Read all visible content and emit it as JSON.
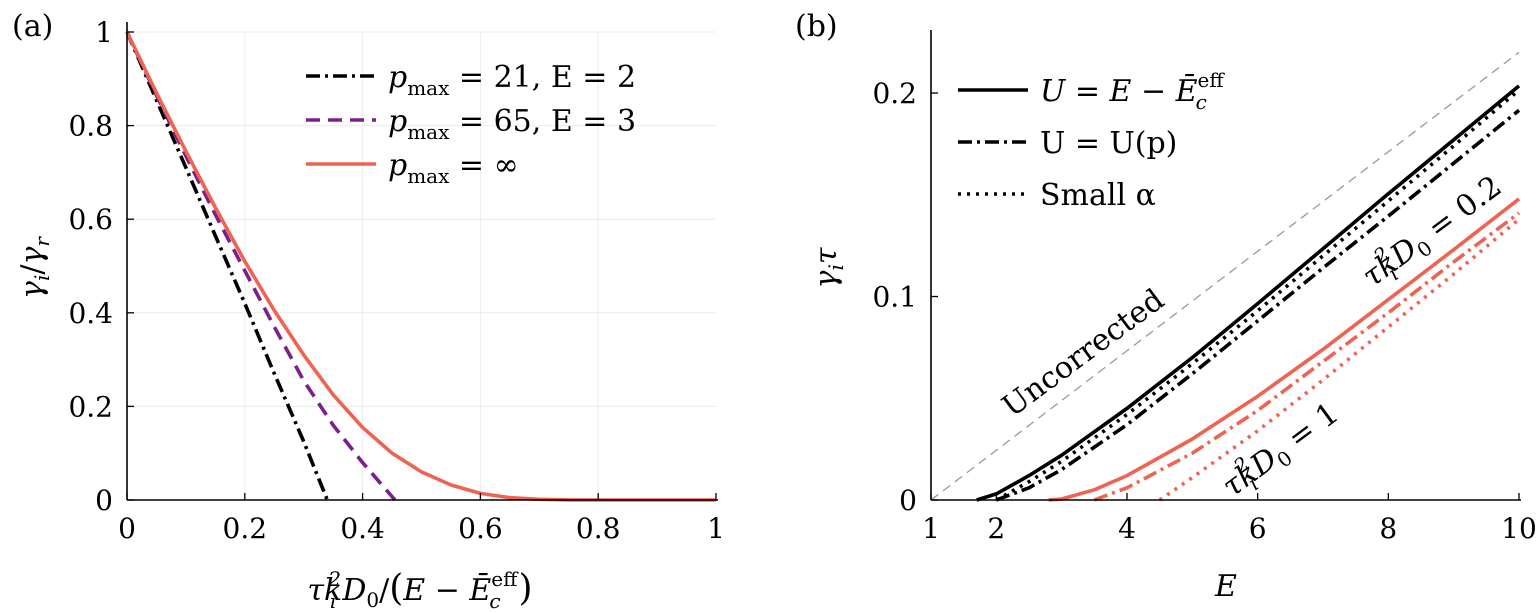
{
  "chart_data": [
    {
      "panel_label": "(a)",
      "type": "line",
      "xlabel": "τk_i²D₀/(E − Ē_c^eff)",
      "xlabel_parts": {
        "lead": "τk",
        "sub1": "i",
        "sup1": "2",
        "mid": "D",
        "sub2": "0",
        "paren_open": "(",
        "E": "E − ",
        "Ebar": "Ē",
        "sub3": "c",
        "sup3": "eff",
        "paren_close": ")",
        "slash": "/"
      },
      "ylabel": "γ_i/γ_r",
      "ylabel_parts": {
        "g1": "γ",
        "s1": "i",
        "slash": "/",
        "g2": "γ",
        "s2": "r"
      },
      "xlim": [
        0,
        1
      ],
      "ylim": [
        0,
        1
      ],
      "x_ticks": [
        "0",
        "0.2",
        "0.4",
        "0.6",
        "0.8",
        "1"
      ],
      "x_tick_values": [
        0,
        0.2,
        0.4,
        0.6,
        0.8,
        1
      ],
      "y_ticks": [
        "0",
        "0.2",
        "0.4",
        "0.6",
        "0.8",
        "1"
      ],
      "y_tick_values": [
        0,
        0.2,
        0.4,
        0.6,
        0.8,
        1
      ],
      "legend_position": "top-right",
      "series": [
        {
          "legend": {
            "p": "p",
            "sub": "max",
            "rest": " = 21,  E = 2"
          },
          "style": "dashdot",
          "color": "#000000",
          "x": [
            0,
            0.05,
            0.1,
            0.15,
            0.2,
            0.25,
            0.3,
            0.34
          ],
          "y": [
            1.0,
            0.855,
            0.71,
            0.565,
            0.42,
            0.27,
            0.125,
            0.0
          ]
        },
        {
          "legend": {
            "p": "p",
            "sub": "max",
            "rest": " = 65,  E = 3"
          },
          "style": "dashed",
          "color": "#7a1f8c",
          "x": [
            0,
            0.05,
            0.1,
            0.15,
            0.2,
            0.25,
            0.3,
            0.35,
            0.4,
            0.455
          ],
          "y": [
            1.0,
            0.865,
            0.735,
            0.61,
            0.49,
            0.37,
            0.255,
            0.16,
            0.08,
            0.0
          ]
        },
        {
          "legend": {
            "p": "p",
            "sub": "max",
            "rest": " = ∞"
          },
          "style": "solid",
          "color": "#ee6352",
          "x": [
            0,
            0.05,
            0.1,
            0.15,
            0.2,
            0.25,
            0.3,
            0.35,
            0.4,
            0.45,
            0.5,
            0.55,
            0.6,
            0.65,
            0.7,
            0.75,
            0.8,
            0.9,
            1.0
          ],
          "y": [
            1.0,
            0.87,
            0.745,
            0.625,
            0.51,
            0.405,
            0.31,
            0.225,
            0.155,
            0.1,
            0.06,
            0.032,
            0.014,
            0.005,
            0.0015,
            0.0003,
            0.0,
            0.0,
            0.0
          ]
        }
      ]
    },
    {
      "panel_label": "(b)",
      "type": "line",
      "xlabel": "E",
      "ylabel": "γ_iτ",
      "ylabel_parts": {
        "g": "γ",
        "s": "i",
        "tau": "τ"
      },
      "xlim": [
        1,
        10
      ],
      "ylim": [
        0,
        0.23
      ],
      "x_ticks": [
        "1",
        "2",
        "4",
        "6",
        "8",
        "10"
      ],
      "x_tick_values": [
        1,
        2,
        4,
        6,
        8,
        10
      ],
      "y_ticks": [
        "0",
        "0.1",
        "0.2"
      ],
      "y_tick_values": [
        0,
        0.1,
        0.2
      ],
      "legend_position": "top-left",
      "legend": [
        {
          "style": "solid",
          "text_parts": {
            "U": "U",
            "eq": " = E − ",
            "Ebar": "Ē",
            "sub": "c",
            "sup": "eff"
          }
        },
        {
          "style": "dashdot",
          "text": "U = U(p)"
        },
        {
          "style": "dotted",
          "text": "Small α"
        }
      ],
      "annotations": {
        "uncorrected": "Uncorrected",
        "upper": {
          "lead": "τk",
          "sub": "i",
          "sup": "2",
          "mid": "D",
          "sub2": "0",
          "rest": " = 0.2"
        },
        "lower": {
          "lead": "τk",
          "sub": "i",
          "sup": "2",
          "mid": "D",
          "sub2": "0",
          "rest": " = 1"
        }
      },
      "series": [
        {
          "name": "Uncorrected",
          "style": "dashed-thin",
          "color": "#9a9a9a",
          "x": [
            1,
            10
          ],
          "y": [
            0.0,
            0.22
          ]
        },
        {
          "name": "solid-0.2",
          "style": "solid",
          "color": "#000000",
          "x": [
            1.7,
            2.0,
            2.5,
            3,
            4,
            5,
            6,
            7,
            8,
            9,
            10
          ],
          "y": [
            0.0,
            0.003,
            0.012,
            0.022,
            0.045,
            0.07,
            0.0965,
            0.1235,
            0.1505,
            0.177,
            0.2035
          ]
        },
        {
          "name": "dashdot-0.2",
          "style": "dashdot",
          "color": "#000000",
          "x": [
            2.0,
            2.5,
            3,
            4,
            5,
            6,
            7,
            8,
            9,
            10
          ],
          "y": [
            0.0,
            0.006,
            0.015,
            0.037,
            0.062,
            0.088,
            0.114,
            0.1395,
            0.1655,
            0.1915
          ]
        },
        {
          "name": "dotted-0.2",
          "style": "dotted",
          "color": "#000000",
          "x": [
            2.0,
            2.5,
            3,
            4,
            5,
            6,
            7,
            8,
            9,
            10
          ],
          "y": [
            0.0,
            0.009,
            0.019,
            0.042,
            0.067,
            0.093,
            0.12,
            0.147,
            0.174,
            0.2015
          ]
        },
        {
          "name": "solid-1",
          "style": "solid",
          "color": "#ee6352",
          "x": [
            2.8,
            3.0,
            3.5,
            4,
            5,
            6,
            7,
            8,
            9,
            10
          ],
          "y": [
            0.0,
            0.0005,
            0.005,
            0.012,
            0.03,
            0.051,
            0.074,
            0.0985,
            0.123,
            0.148
          ]
        },
        {
          "name": "dashdot-1",
          "style": "dashdot",
          "color": "#ee6352",
          "x": [
            3.5,
            4,
            5,
            6,
            7,
            8,
            9,
            10
          ],
          "y": [
            0.0,
            0.006,
            0.023,
            0.044,
            0.068,
            0.092,
            0.117,
            0.141
          ]
        },
        {
          "name": "dotted-1",
          "style": "dotted",
          "color": "#ee6352",
          "x": [
            4.5,
            5,
            6,
            7,
            8,
            9,
            10
          ],
          "y": [
            0.0,
            0.011,
            0.034,
            0.059,
            0.085,
            0.111,
            0.138
          ]
        }
      ]
    }
  ]
}
